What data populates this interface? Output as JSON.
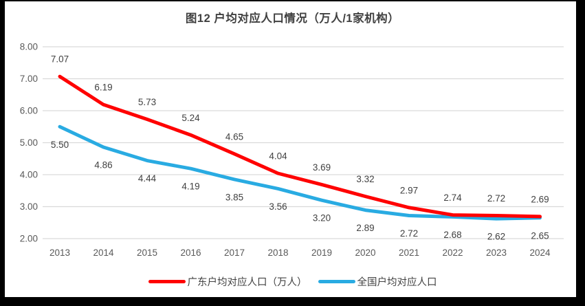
{
  "chart_data": {
    "type": "line",
    "title": "图12 户均对应人口情况（万人/1家机构）",
    "categories": [
      "2013",
      "2014",
      "2015",
      "2016",
      "2017",
      "2018",
      "2019",
      "2020",
      "2021",
      "2022",
      "2023",
      "2024"
    ],
    "series": [
      {
        "name": "广东户均对应人口（万人）",
        "color": "#FF0000",
        "values": [
          7.07,
          6.19,
          5.73,
          5.24,
          4.65,
          4.04,
          3.69,
          3.32,
          2.97,
          2.74,
          2.72,
          2.69
        ]
      },
      {
        "name": "全国户均对应人口",
        "color": "#29ABE2",
        "values": [
          5.5,
          4.86,
          4.44,
          4.19,
          3.85,
          3.56,
          3.2,
          2.89,
          2.72,
          2.68,
          2.62,
          2.65
        ]
      }
    ],
    "xlabel": "",
    "ylabel": "",
    "ylim": [
      2,
      8
    ],
    "ytick_step": 1,
    "ytick_decimals": 2,
    "data_label_decimals": 2,
    "grid": "horizontal",
    "gridline_color": "#D9D9D9",
    "label_color": "#404040",
    "tick_color": "#595959",
    "legend_position": "bottom",
    "data_labels": true
  }
}
